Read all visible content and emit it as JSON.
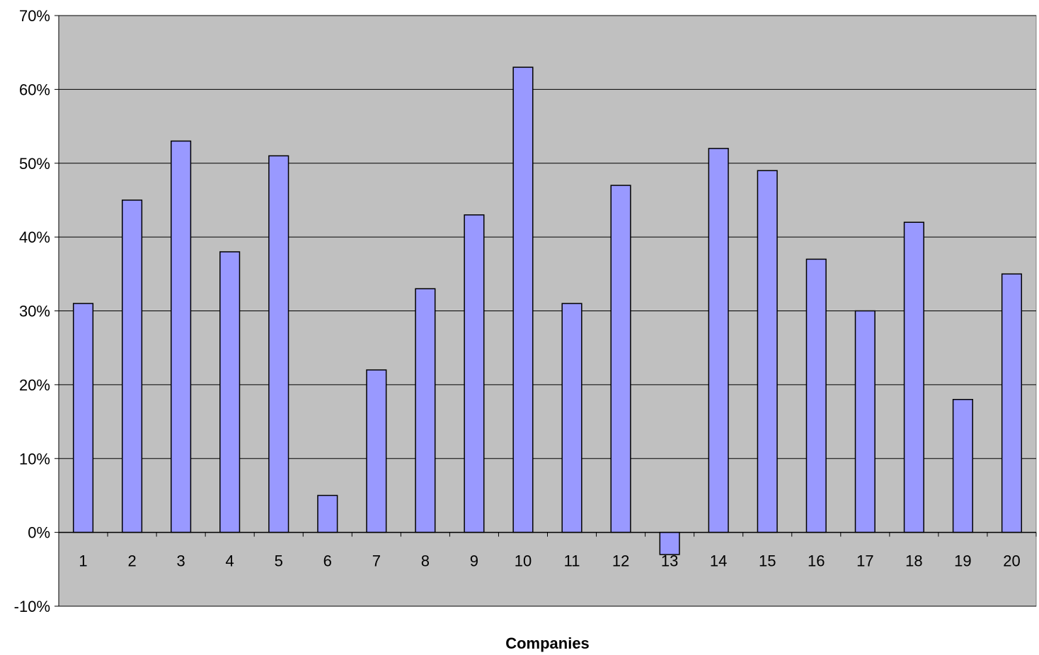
{
  "chart_data": {
    "type": "bar",
    "title": "",
    "xlabel": "Companies",
    "ylabel": "",
    "categories": [
      "1",
      "2",
      "3",
      "4",
      "5",
      "6",
      "7",
      "8",
      "9",
      "10",
      "11",
      "12",
      "13",
      "14",
      "15",
      "16",
      "17",
      "18",
      "19",
      "20"
    ],
    "values": [
      31,
      45,
      53,
      38,
      51,
      5,
      22,
      33,
      43,
      63,
      31,
      47,
      -3,
      52,
      49,
      37,
      30,
      42,
      18,
      35
    ],
    "value_unit": "%",
    "ylim": [
      -10,
      70
    ],
    "yticks": [
      -10,
      0,
      10,
      20,
      30,
      40,
      50,
      60,
      70
    ],
    "ytick_labels": [
      "-10%",
      "0%",
      "10%",
      "20%",
      "30%",
      "40%",
      "50%",
      "60%",
      "70%"
    ],
    "grid": true,
    "legend": "none",
    "colors": {
      "plot_background": "#c0c0c0",
      "bar_fill": "#9999ff",
      "bar_stroke": "#000000",
      "gridline": "#000000"
    }
  }
}
